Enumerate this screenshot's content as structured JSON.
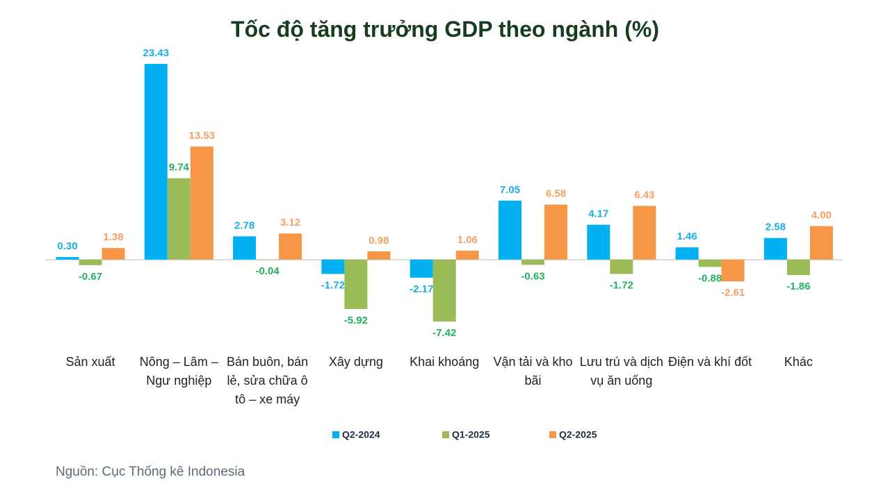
{
  "chart_data": {
    "type": "bar",
    "title": "Tốc độ tăng trưởng GDP theo ngành (%)",
    "categories": [
      "Sản xuất",
      "Nông – Lâm – Ngư nghiệp",
      "Bán buôn, bán lẻ, sửa chữa ô tô – xe máy",
      "Xây dựng",
      "Khai khoáng",
      "Vận tải và kho bãi",
      "Lưu trú và dịch vụ ăn uống",
      "Điện và khí đốt",
      "Khác"
    ],
    "series": [
      {
        "name": "Q2-2024",
        "color": "#00b0f0",
        "values": [
          0.3,
          23.43,
          2.78,
          -1.72,
          -2.17,
          7.05,
          4.17,
          1.46,
          2.58
        ],
        "value_labels": [
          "0.30",
          "23.43",
          "2.78",
          "-1.72",
          "-2.17",
          "7.05",
          "4.17",
          "1.46",
          "2.58"
        ]
      },
      {
        "name": "Q1-2025",
        "color": "#9bbb59",
        "values": [
          -0.67,
          9.74,
          -0.04,
          -5.92,
          -7.42,
          -0.63,
          -1.72,
          -0.88,
          -1.86
        ],
        "value_labels": [
          "-0.67",
          "9.74",
          "-0.04",
          "-5.92",
          "-7.42",
          "-0.63",
          "-1.72",
          "-0.88",
          "-1.86"
        ]
      },
      {
        "name": "Q2-2025",
        "color": "#f79646",
        "values": [
          1.38,
          13.53,
          3.12,
          0.98,
          1.06,
          6.58,
          6.43,
          -2.61,
          4.0
        ],
        "value_labels": [
          "1.38",
          "13.53",
          "3.12",
          "0.98",
          "1.06",
          "6.58",
          "6.43",
          "-2.61",
          "4.00"
        ]
      }
    ],
    "legend": "bottom",
    "source": "Nguồn: Cục Thống kê Indonesia"
  }
}
